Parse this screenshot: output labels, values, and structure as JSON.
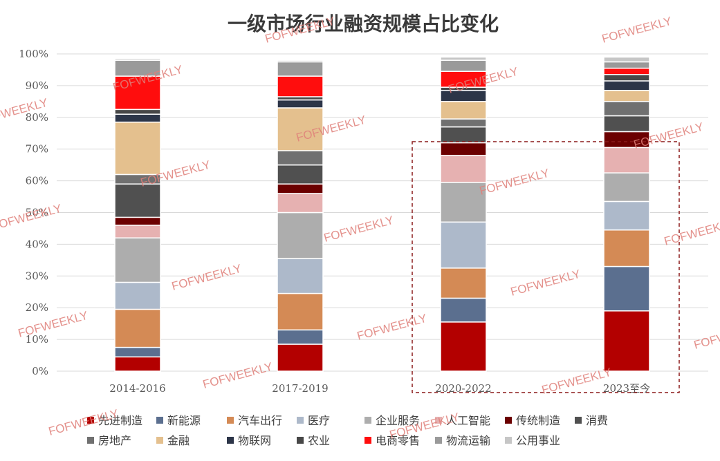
{
  "chart_data": {
    "type": "bar",
    "stacked": true,
    "title": "一级市场行业融资规模占比变化",
    "categories": [
      "2014-2016",
      "2017-2019",
      "2020-2022",
      "2023至今"
    ],
    "y_ticks": [
      "0%",
      "10%",
      "20%",
      "30%",
      "40%",
      "50%",
      "60%",
      "70%",
      "80%",
      "90%",
      "100%"
    ],
    "ylim": [
      0,
      100
    ],
    "grid": true,
    "legend_position": "bottom",
    "highlight_box": "dashed box around 2020-2022 and 2023至今",
    "series": [
      {
        "name": "先进制造",
        "color": "#b30000",
        "values": [
          4.5,
          8.5,
          15.5,
          19
        ]
      },
      {
        "name": "新能源",
        "color": "#5b6f8f",
        "values": [
          3,
          4.5,
          7.5,
          14
        ]
      },
      {
        "name": "汽车出行",
        "color": "#d48a55",
        "values": [
          12,
          11.5,
          9.5,
          11.5
        ]
      },
      {
        "name": "医疗",
        "color": "#adb9ca",
        "values": [
          8.5,
          11,
          14.5,
          9
        ]
      },
      {
        "name": "企业服务",
        "color": "#adadad",
        "values": [
          14,
          14.5,
          12.5,
          9
        ]
      },
      {
        "name": "人工智能",
        "color": "#e6b1b1",
        "values": [
          4,
          6,
          8.5,
          8
        ]
      },
      {
        "name": "传统制造",
        "color": "#6b0000",
        "values": [
          2.5,
          3,
          4,
          5
        ]
      },
      {
        "name": "消费",
        "color": "#505050",
        "values": [
          10.5,
          6,
          5,
          5
        ]
      },
      {
        "name": "房地产",
        "color": "#707070",
        "values": [
          3,
          4.5,
          2.5,
          4.5
        ]
      },
      {
        "name": "金融",
        "color": "#e4c08e",
        "values": [
          16.5,
          13.5,
          5.5,
          3.5
        ]
      },
      {
        "name": "物联网",
        "color": "#2c3548",
        "values": [
          2.5,
          2.5,
          3.5,
          3
        ]
      },
      {
        "name": "农业",
        "color": "#474747",
        "values": [
          1.5,
          1,
          1,
          2
        ]
      },
      {
        "name": "电商零售",
        "color": "#ff0d0d",
        "values": [
          10.5,
          6.5,
          5,
          2
        ]
      },
      {
        "name": "物流运输",
        "color": "#9a9a9a",
        "values": [
          5,
          4.5,
          3.5,
          2
        ]
      },
      {
        "name": "公用事业",
        "color": "#c6c6c6",
        "values": [
          0.5,
          0.5,
          1,
          1.5
        ]
      }
    ]
  },
  "watermark": "FOFWEEKLY"
}
